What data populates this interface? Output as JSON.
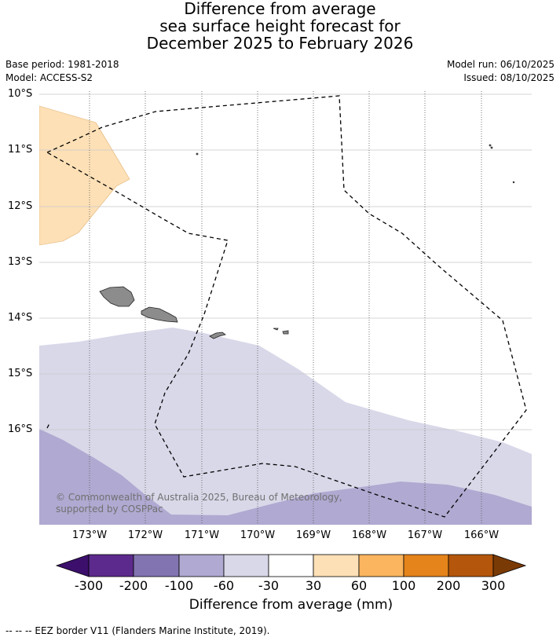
{
  "title": {
    "line1": "Difference from average",
    "line2": "sea surface height forecast for",
    "line3": "December 2025 to February 2026"
  },
  "meta": {
    "base_period": "Base period: 1981-2018",
    "model": "Model: ACCESS-S2",
    "model_run": "Model run: 06/10/2025",
    "issued": "Issued: 08/10/2025"
  },
  "lat_labels": [
    "10°S",
    "11°S",
    "12°S",
    "13°S",
    "14°S",
    "15°S",
    "16°S"
  ],
  "lon_labels": [
    "173°W",
    "172°W",
    "171°W",
    "170°W",
    "169°W",
    "168°W",
    "167°W",
    "166°W"
  ],
  "copyright": "© Commonwealth of Australia 2025, Bureau of Meteorology, supported by COSPPac",
  "colorbar": {
    "title": "Difference from average (mm)",
    "ticks": [
      "-300",
      "-200",
      "-100",
      "-60",
      "-30",
      "30",
      "60",
      "100",
      "200",
      "300"
    ],
    "colors": [
      "#3b0f6b",
      "#5c2a8d",
      "#8274b0",
      "#b0a9d1",
      "#d8d8e9",
      "#ffffff",
      "#fde0b6",
      "#fbb55f",
      "#e5841a",
      "#b4560b",
      "#7a3a06"
    ]
  },
  "map_colors": {
    "class_minus_100_to_minus_60": "#b0a9d1",
    "class_minus_60_to_minus_30": "#d8d8e9",
    "class_30_to_60": "#fde0b6",
    "land": "#8c8c8c"
  },
  "footer": "--  --  -- EEZ border V11 (Flanders Marine Institute, 2019)."
}
